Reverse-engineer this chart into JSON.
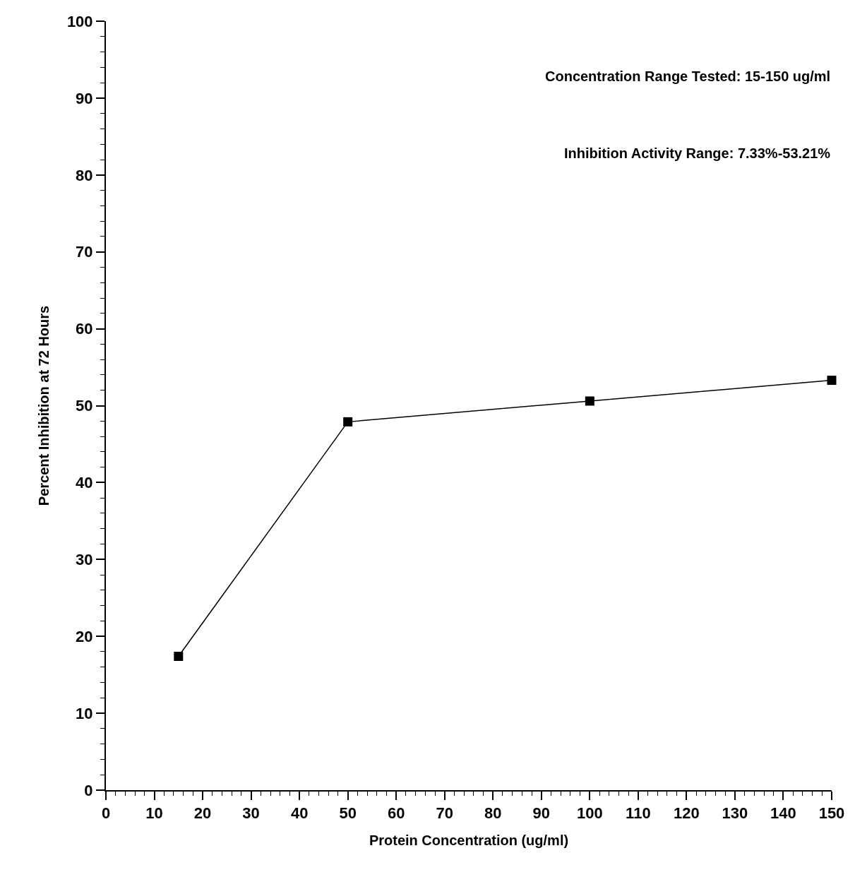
{
  "chart_data": {
    "type": "line",
    "xlabel": "Protein Concentration (ug/ml)",
    "ylabel": "Percent Inhibition at 72 Hours",
    "x": [
      15,
      50,
      100,
      150
    ],
    "series": [
      {
        "color": "#000000",
        "values": [
          17.4,
          47.9,
          50.6,
          53.3
        ]
      }
    ],
    "xlim": [
      0,
      150
    ],
    "ylim": [
      0,
      100
    ],
    "xticks": [
      0,
      10,
      20,
      30,
      40,
      50,
      60,
      70,
      80,
      90,
      100,
      110,
      120,
      130,
      140,
      150
    ],
    "yticks": [
      0,
      10,
      20,
      30,
      40,
      50,
      60,
      70,
      80,
      90,
      100
    ],
    "marker": "square",
    "line_style": "solid",
    "annotations": [
      "Concentration Range Tested: 15-150 ug/ml",
      "Inhibition Activity Range: 7.33%-53.21%"
    ]
  }
}
